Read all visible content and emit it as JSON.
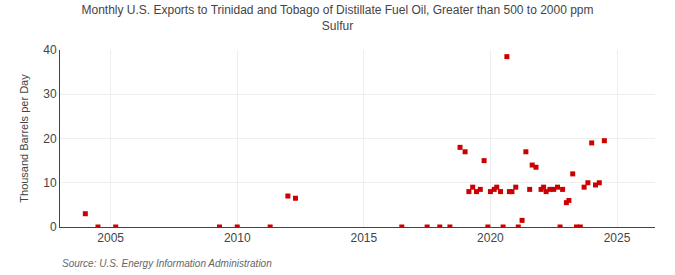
{
  "chart_data": {
    "type": "scatter",
    "title": "Monthly U.S. Exports to Trinidad and Tobago of Distillate Fuel Oil, Greater than 500 to 2000 ppm\nSulfur",
    "ylabel": "Thousand Barrels per Day",
    "annotations": [
      "Source: U.S. Energy Information Administration"
    ],
    "color": "#cc0000",
    "marker": "square",
    "grid": true,
    "xlim": [
      2003.0,
      2026.5
    ],
    "ylim": [
      0,
      40
    ],
    "xticks": [
      2005,
      2010,
      2015,
      2020,
      2025
    ],
    "yticks": [
      0,
      10,
      20,
      30,
      40
    ],
    "x": [
      2004.0,
      2004.5,
      2005.2,
      2009.3,
      2010.0,
      2011.3,
      2012.0,
      2012.3,
      2016.5,
      2017.5,
      2018.0,
      2018.4,
      2018.8,
      2019.0,
      2019.15,
      2019.3,
      2019.45,
      2019.6,
      2019.75,
      2019.9,
      2020.0,
      2020.15,
      2020.25,
      2020.4,
      2020.5,
      2020.65,
      2020.75,
      2020.85,
      2021.0,
      2021.1,
      2021.25,
      2021.4,
      2021.55,
      2021.65,
      2021.8,
      2022.0,
      2022.1,
      2022.2,
      2022.35,
      2022.5,
      2022.65,
      2022.75,
      2022.85,
      2023.0,
      2023.1,
      2023.25,
      2023.4,
      2023.55,
      2023.7,
      2023.85,
      2024.0,
      2024.15,
      2024.3,
      2024.5
    ],
    "values": [
      3.0,
      0.0,
      0.0,
      0.0,
      0.0,
      0.0,
      7.0,
      6.5,
      0.0,
      0.0,
      0.0,
      0.0,
      18.0,
      17.0,
      8.0,
      9.0,
      8.0,
      8.5,
      15.0,
      0.0,
      8.0,
      8.5,
      9.0,
      8.0,
      0.0,
      38.5,
      8.0,
      8.0,
      9.0,
      0.0,
      1.5,
      17.0,
      8.5,
      14.0,
      13.5,
      8.5,
      9.0,
      8.0,
      8.5,
      8.5,
      9.0,
      0.0,
      8.5,
      5.5,
      6.0,
      12.0,
      0.0,
      0.0,
      9.0,
      10.0,
      19.0,
      9.5,
      10.0,
      19.5
    ]
  }
}
